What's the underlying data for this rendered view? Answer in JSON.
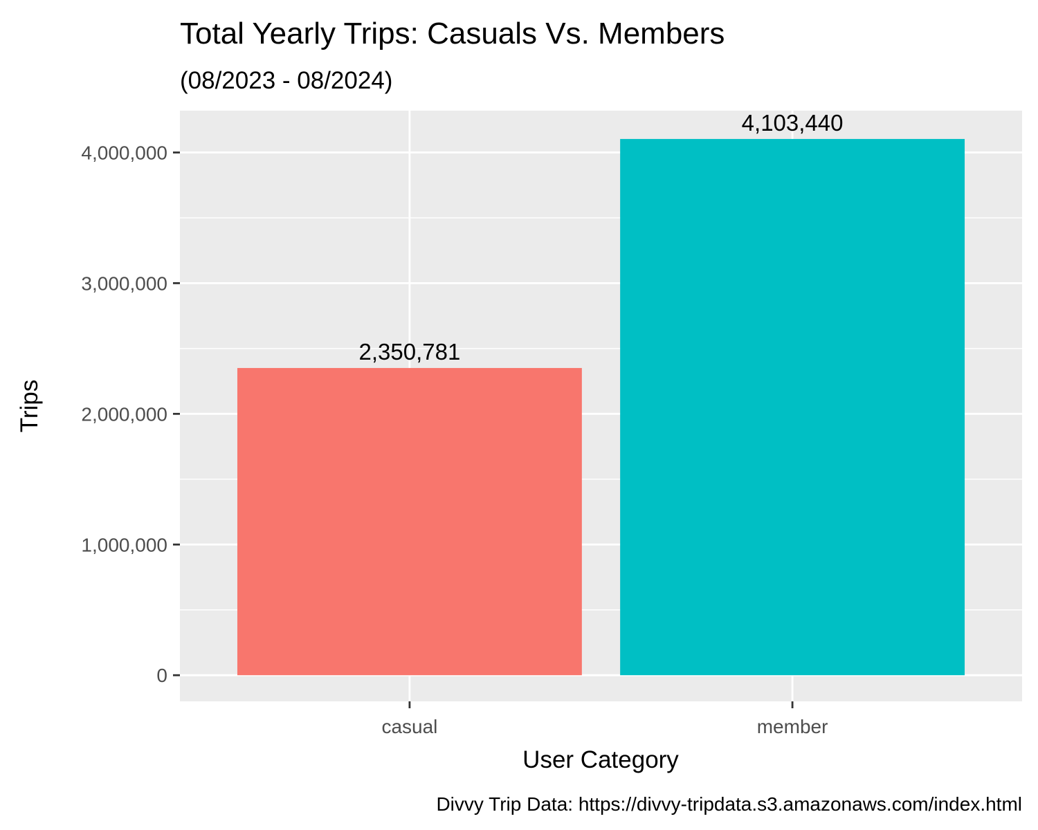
{
  "chart_data": {
    "type": "bar",
    "title": "Total Yearly Trips: Casuals Vs. Members",
    "subtitle": "(08/2023 - 08/2024)",
    "xlabel": "User Category",
    "ylabel": "Trips",
    "caption": "Divvy Trip Data: https://divvy-tripdata.s3.amazonaws.com/index.html",
    "categories": [
      "casual",
      "member"
    ],
    "values": [
      2350781,
      4103440
    ],
    "value_labels": [
      "2,350,781",
      "4,103,440"
    ],
    "colors": [
      "#F8766D",
      "#00BFC4"
    ],
    "ylim": [
      -200000,
      4320000
    ],
    "yticks": [
      0,
      1000000,
      2000000,
      3000000,
      4000000
    ],
    "ytick_labels": [
      "0",
      "1,000,000",
      "2,000,000",
      "3,000,000",
      "4,000,000"
    ],
    "grid": true,
    "legend": "none",
    "panel_background": "#EBEBEB",
    "grid_color": "#FFFFFF"
  }
}
